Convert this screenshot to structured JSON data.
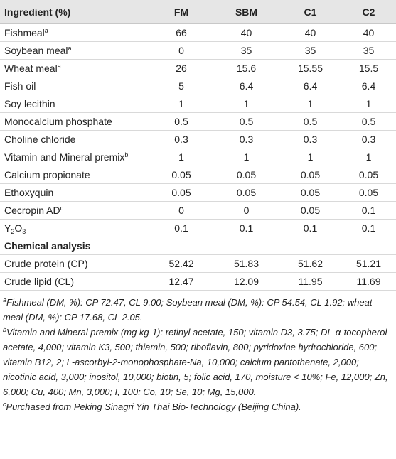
{
  "table": {
    "header": [
      "Ingredient (%)",
      "FM",
      "SBM",
      "C1",
      "C2"
    ],
    "rows": [
      {
        "name": [
          {
            "text": "Fishmeal"
          },
          {
            "sup": "a"
          }
        ],
        "values": [
          "66",
          "40",
          "40",
          "40"
        ]
      },
      {
        "name": [
          {
            "text": "Soybean meal"
          },
          {
            "sup": "a"
          }
        ],
        "values": [
          "0",
          "35",
          "35",
          "35"
        ]
      },
      {
        "name": [
          {
            "text": "Wheat meal"
          },
          {
            "sup": "a"
          }
        ],
        "values": [
          "26",
          "15.6",
          "15.55",
          "15.5"
        ]
      },
      {
        "name": [
          {
            "text": "Fish oil"
          }
        ],
        "values": [
          "5",
          "6.4",
          "6.4",
          "6.4"
        ]
      },
      {
        "name": [
          {
            "text": "Soy lecithin"
          }
        ],
        "values": [
          "1",
          "1",
          "1",
          "1"
        ]
      },
      {
        "name": [
          {
            "text": "Monocalcium phosphate"
          }
        ],
        "values": [
          "0.5",
          "0.5",
          "0.5",
          "0.5"
        ]
      },
      {
        "name": [
          {
            "text": "Choline chloride"
          }
        ],
        "values": [
          "0.3",
          "0.3",
          "0.3",
          "0.3"
        ]
      },
      {
        "name": [
          {
            "text": "Vitamin and Mineral premix"
          },
          {
            "sup": "b"
          }
        ],
        "values": [
          "1",
          "1",
          "1",
          "1"
        ]
      },
      {
        "name": [
          {
            "text": "Calcium propionate"
          }
        ],
        "values": [
          "0.05",
          "0.05",
          "0.05",
          "0.05"
        ]
      },
      {
        "name": [
          {
            "text": "Ethoxyquin"
          }
        ],
        "values": [
          "0.05",
          "0.05",
          "0.05",
          "0.05"
        ]
      },
      {
        "name": [
          {
            "text": "Cecropin AD"
          },
          {
            "sup": "c"
          }
        ],
        "values": [
          "0",
          "0",
          "0.05",
          "0.1"
        ]
      },
      {
        "name": [
          {
            "text": "Y"
          },
          {
            "sub": "2"
          },
          {
            "text": "O"
          },
          {
            "sub": "3"
          }
        ],
        "values": [
          "0.1",
          "0.1",
          "0.1",
          "0.1"
        ]
      }
    ],
    "section": "Chemical analysis",
    "analysis_rows": [
      {
        "name": [
          {
            "text": "Crude protein (CP)"
          }
        ],
        "values": [
          "52.42",
          "51.83",
          "51.62",
          "51.21"
        ]
      },
      {
        "name": [
          {
            "text": "Crude lipid (CL)"
          }
        ],
        "values": [
          "12.47",
          "12.09",
          "11.95",
          "11.69"
        ]
      }
    ]
  },
  "footnotes": [
    {
      "mark": "a",
      "text": "Fishmeal (DM, %): CP 72.47, CL 9.00; Soybean meal (DM, %): CP 54.54, CL 1.92; wheat meal (DM, %): CP 17.68, CL 2.05."
    },
    {
      "mark": "b",
      "text": "Vitamin and Mineral premix (mg kg-1): retinyl acetate, 150; vitamin D3, 3.75; DL-α-tocopherol acetate, 4,000; vitamin K3, 500; thiamin, 500; riboflavin, 800; pyridoxine hydrochloride, 600; vitamin B12, 2; L-ascorbyl-2-monophosphate-Na, 10,000; calcium pantothenate, 2,000; nicotinic acid, 3,000; inositol, 10,000; biotin, 5; folic acid, 170, moisture < 10%; Fe, 12,000; Zn, 6,000; Cu, 400; Mn, 3,000; I, 100; Co, 10; Se, 10; Mg, 15,000."
    },
    {
      "mark": "c",
      "text": "Purchased from Peking Sinagri Yin Thai Bio-Technology (Beijing China)."
    }
  ]
}
